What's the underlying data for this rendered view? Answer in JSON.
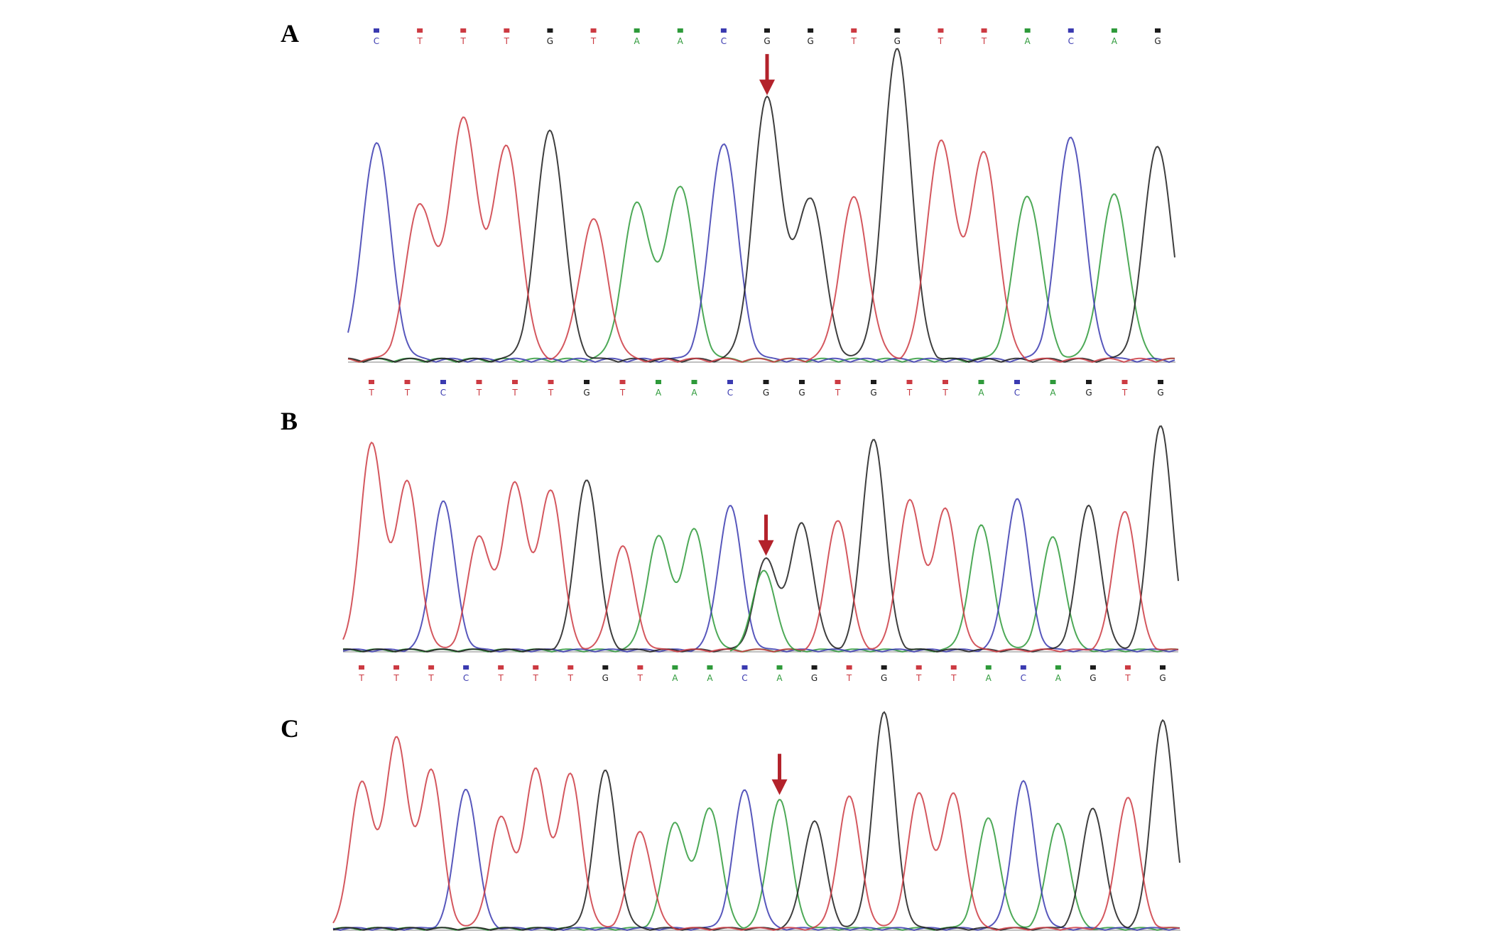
{
  "colors": {
    "A": "#2e9a3a",
    "C": "#3a3ab0",
    "G": "#1c1c1c",
    "T": "#cc3a42",
    "arrow": "#b3222b"
  },
  "panels": [
    {
      "label": "A",
      "bases": [
        "C",
        "T",
        "T",
        "T",
        "G",
        "T",
        "A",
        "A",
        "C",
        "G",
        "G",
        "T",
        "G",
        "T",
        "T",
        "A",
        "C",
        "A",
        "G"
      ],
      "peaks": [
        0.7,
        0.5,
        0.77,
        0.68,
        0.74,
        0.45,
        0.5,
        0.56,
        0.7,
        0.84,
        0.52,
        0.52,
        1.0,
        0.7,
        0.66,
        0.53,
        0.72,
        0.53,
        0.69
      ],
      "arrow_index": 9
    },
    {
      "label": "B",
      "bases": [
        "T",
        "T",
        "C",
        "T",
        "T",
        "T",
        "G",
        "T",
        "A",
        "A",
        "C",
        "G",
        "G",
        "T",
        "G",
        "T",
        "T",
        "A",
        "C",
        "A",
        "G",
        "T",
        "G"
      ],
      "peaks": [
        0.91,
        0.74,
        0.66,
        0.5,
        0.74,
        0.71,
        0.76,
        0.46,
        0.5,
        0.53,
        0.64,
        0.4,
        0.56,
        0.58,
        0.94,
        0.66,
        0.62,
        0.55,
        0.67,
        0.5,
        0.64,
        0.62,
        1.0
      ],
      "arrow_index": 11
    },
    {
      "label": "C",
      "bases": [
        "T",
        "T",
        "T",
        "C",
        "T",
        "T",
        "T",
        "G",
        "T",
        "A",
        "A",
        "C",
        "A",
        "G",
        "T",
        "G",
        "T",
        "T",
        "A",
        "C",
        "A",
        "G",
        "T",
        "G"
      ],
      "peaks": [
        0.68,
        0.88,
        0.73,
        0.65,
        0.51,
        0.73,
        0.71,
        0.73,
        0.45,
        0.49,
        0.56,
        0.64,
        0.6,
        0.5,
        0.61,
        1.0,
        0.62,
        0.62,
        0.51,
        0.68,
        0.49,
        0.56,
        0.61,
        0.97
      ],
      "arrow_index": 12
    }
  ]
}
